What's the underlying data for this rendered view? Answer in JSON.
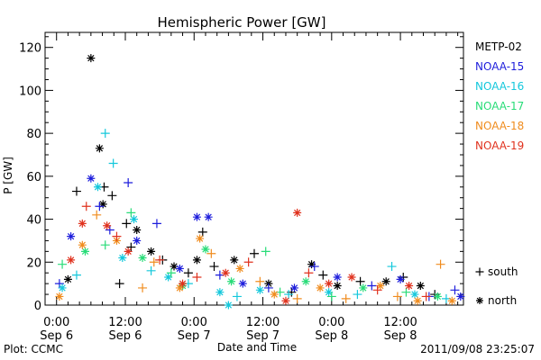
{
  "chart_data": {
    "type": "scatter",
    "title": "Hemispheric Power [GW]",
    "xlabel": "Date and Time",
    "ylabel": "P [GW]",
    "footer_left": "Plot: CCMC",
    "footer_right": "2011/09/08 23:25:07",
    "x_unit": "hours since Sep 6 00:00",
    "xlim": [
      -2,
      71
    ],
    "ylim": [
      0,
      127
    ],
    "grid": false,
    "legend_position": "right",
    "x_ticks": [
      {
        "value": 0,
        "time": "0:00",
        "date": "Sep 6"
      },
      {
        "value": 12,
        "time": "12:00",
        "date": "Sep 6"
      },
      {
        "value": 24,
        "time": "0:00",
        "date": "Sep 7"
      },
      {
        "value": 36,
        "time": "12:00",
        "date": "Sep 7"
      },
      {
        "value": 48,
        "time": "0:00",
        "date": "Sep 8"
      },
      {
        "value": 60,
        "time": "12:00",
        "date": "Sep 8"
      }
    ],
    "y_ticks": [
      0,
      20,
      40,
      60,
      80,
      100,
      120
    ],
    "marker_legend": [
      {
        "symbol": "+",
        "label": "south"
      },
      {
        "symbol": "*",
        "label": "north"
      }
    ],
    "series": [
      {
        "name": "METP-02",
        "color": "#000000",
        "points": [
          {
            "x": 6.0,
            "y": 115,
            "h": "N"
          },
          {
            "x": 7.5,
            "y": 73,
            "h": "N"
          },
          {
            "x": 8.3,
            "y": 55,
            "h": "S"
          },
          {
            "x": 3.5,
            "y": 53,
            "h": "S"
          },
          {
            "x": 9.7,
            "y": 51,
            "h": "S"
          },
          {
            "x": 8.1,
            "y": 47,
            "h": "N"
          },
          {
            "x": 12.2,
            "y": 38,
            "h": "S"
          },
          {
            "x": 14.0,
            "y": 35,
            "h": "N"
          },
          {
            "x": 13.0,
            "y": 27,
            "h": "S"
          },
          {
            "x": 11.0,
            "y": 10,
            "h": "S"
          },
          {
            "x": 16.5,
            "y": 25,
            "h": "N"
          },
          {
            "x": 18.5,
            "y": 21,
            "h": "S"
          },
          {
            "x": 20.5,
            "y": 18,
            "h": "N"
          },
          {
            "x": 23.0,
            "y": 15,
            "h": "S"
          },
          {
            "x": 25.5,
            "y": 34,
            "h": "S"
          },
          {
            "x": 24.5,
            "y": 21,
            "h": "N"
          },
          {
            "x": 27.5,
            "y": 18,
            "h": "S"
          },
          {
            "x": 31.0,
            "y": 21,
            "h": "N"
          },
          {
            "x": 34.5,
            "y": 24,
            "h": "S"
          },
          {
            "x": 37.0,
            "y": 10,
            "h": "N"
          },
          {
            "x": 44.5,
            "y": 19,
            "h": "N"
          },
          {
            "x": 46.5,
            "y": 14,
            "h": "S"
          },
          {
            "x": 49.0,
            "y": 9,
            "h": "N"
          },
          {
            "x": 53.0,
            "y": 11,
            "h": "S"
          },
          {
            "x": 57.5,
            "y": 11,
            "h": "N"
          },
          {
            "x": 60.5,
            "y": 13,
            "h": "S"
          },
          {
            "x": 63.5,
            "y": 9,
            "h": "N"
          },
          {
            "x": 66.0,
            "y": 5,
            "h": "S"
          },
          {
            "x": 2.0,
            "y": 12,
            "h": "N"
          },
          {
            "x": 41.0,
            "y": 6,
            "h": "S"
          }
        ]
      },
      {
        "name": "NOAA-15",
        "color": "#1e1edc",
        "points": [
          {
            "x": 2.5,
            "y": 32,
            "h": "N"
          },
          {
            "x": 6.0,
            "y": 59,
            "h": "N"
          },
          {
            "x": 7.5,
            "y": 46,
            "h": "S"
          },
          {
            "x": 12.5,
            "y": 57,
            "h": "S"
          },
          {
            "x": 9.3,
            "y": 35,
            "h": "S"
          },
          {
            "x": 14.0,
            "y": 30,
            "h": "N"
          },
          {
            "x": 17.5,
            "y": 38,
            "h": "S"
          },
          {
            "x": 24.5,
            "y": 41,
            "h": "N"
          },
          {
            "x": 26.5,
            "y": 41,
            "h": "N"
          },
          {
            "x": 28.5,
            "y": 14,
            "h": "S"
          },
          {
            "x": 32.5,
            "y": 10,
            "h": "N"
          },
          {
            "x": 37.0,
            "y": 8,
            "h": "S"
          },
          {
            "x": 41.5,
            "y": 8,
            "h": "N"
          },
          {
            "x": 45.0,
            "y": 18,
            "h": "S"
          },
          {
            "x": 49.0,
            "y": 13,
            "h": "N"
          },
          {
            "x": 55.0,
            "y": 9,
            "h": "S"
          },
          {
            "x": 60.0,
            "y": 12,
            "h": "N"
          },
          {
            "x": 65.0,
            "y": 4,
            "h": "S"
          },
          {
            "x": 69.5,
            "y": 7,
            "h": "S"
          },
          {
            "x": 70.5,
            "y": 4,
            "h": "N"
          },
          {
            "x": 0.5,
            "y": 10,
            "h": "S"
          },
          {
            "x": 21.5,
            "y": 17,
            "h": "N"
          }
        ]
      },
      {
        "name": "NOAA-16",
        "color": "#14c8dc",
        "points": [
          {
            "x": 8.5,
            "y": 80,
            "h": "S"
          },
          {
            "x": 9.9,
            "y": 66,
            "h": "S"
          },
          {
            "x": 7.2,
            "y": 55,
            "h": "N"
          },
          {
            "x": 13.5,
            "y": 40,
            "h": "N"
          },
          {
            "x": 3.5,
            "y": 14,
            "h": "S"
          },
          {
            "x": 11.5,
            "y": 22,
            "h": "N"
          },
          {
            "x": 16.5,
            "y": 16,
            "h": "S"
          },
          {
            "x": 19.5,
            "y": 13,
            "h": "N"
          },
          {
            "x": 23.0,
            "y": 10,
            "h": "S"
          },
          {
            "x": 28.5,
            "y": 6,
            "h": "N"
          },
          {
            "x": 31.5,
            "y": 4,
            "h": "S"
          },
          {
            "x": 35.5,
            "y": 7,
            "h": "N"
          },
          {
            "x": 40.5,
            "y": 5,
            "h": "S"
          },
          {
            "x": 47.5,
            "y": 6,
            "h": "N"
          },
          {
            "x": 52.5,
            "y": 5,
            "h": "S"
          },
          {
            "x": 58.5,
            "y": 18,
            "h": "S"
          },
          {
            "x": 62.5,
            "y": 5,
            "h": "N"
          },
          {
            "x": 68.0,
            "y": 3,
            "h": "S"
          },
          {
            "x": 30.0,
            "y": 0,
            "h": "N"
          },
          {
            "x": 1.0,
            "y": 8,
            "h": "N"
          }
        ]
      },
      {
        "name": "NOAA-17",
        "color": "#28dc78",
        "points": [
          {
            "x": 1.0,
            "y": 19,
            "h": "S"
          },
          {
            "x": 5.0,
            "y": 25,
            "h": "N"
          },
          {
            "x": 8.5,
            "y": 28,
            "h": "S"
          },
          {
            "x": 13.0,
            "y": 43,
            "h": "S"
          },
          {
            "x": 15.0,
            "y": 22,
            "h": "N"
          },
          {
            "x": 20.0,
            "y": 15,
            "h": "S"
          },
          {
            "x": 26.0,
            "y": 26,
            "h": "N"
          },
          {
            "x": 36.5,
            "y": 25,
            "h": "S"
          },
          {
            "x": 30.5,
            "y": 11,
            "h": "N"
          },
          {
            "x": 39.0,
            "y": 6,
            "h": "S"
          },
          {
            "x": 43.5,
            "y": 11,
            "h": "N"
          },
          {
            "x": 48.0,
            "y": 4,
            "h": "S"
          },
          {
            "x": 53.5,
            "y": 8,
            "h": "N"
          },
          {
            "x": 61.0,
            "y": 6,
            "h": "S"
          },
          {
            "x": 66.5,
            "y": 4,
            "h": "N"
          },
          {
            "x": 22.0,
            "y": 9,
            "h": "N"
          }
        ]
      },
      {
        "name": "NOAA-18",
        "color": "#f08c1e",
        "points": [
          {
            "x": 0.5,
            "y": 4,
            "h": "N"
          },
          {
            "x": 4.5,
            "y": 28,
            "h": "N"
          },
          {
            "x": 7.0,
            "y": 42,
            "h": "S"
          },
          {
            "x": 10.5,
            "y": 30,
            "h": "N"
          },
          {
            "x": 15.0,
            "y": 8,
            "h": "S"
          },
          {
            "x": 17.0,
            "y": 20,
            "h": "S"
          },
          {
            "x": 21.5,
            "y": 8,
            "h": "N"
          },
          {
            "x": 25.0,
            "y": 31,
            "h": "N"
          },
          {
            "x": 27.0,
            "y": 24,
            "h": "S"
          },
          {
            "x": 32.0,
            "y": 17,
            "h": "N"
          },
          {
            "x": 35.5,
            "y": 11,
            "h": "S"
          },
          {
            "x": 38.0,
            "y": 5,
            "h": "N"
          },
          {
            "x": 42.0,
            "y": 3,
            "h": "S"
          },
          {
            "x": 46.0,
            "y": 8,
            "h": "N"
          },
          {
            "x": 50.5,
            "y": 3,
            "h": "S"
          },
          {
            "x": 56.5,
            "y": 9,
            "h": "N"
          },
          {
            "x": 59.5,
            "y": 4,
            "h": "S"
          },
          {
            "x": 63.0,
            "y": 2,
            "h": "N"
          },
          {
            "x": 67.0,
            "y": 19,
            "h": "S"
          },
          {
            "x": 69.0,
            "y": 2,
            "h": "N"
          }
        ]
      },
      {
        "name": "NOAA-19",
        "color": "#e0321e",
        "points": [
          {
            "x": 2.5,
            "y": 21,
            "h": "N"
          },
          {
            "x": 4.5,
            "y": 38,
            "h": "N"
          },
          {
            "x": 5.2,
            "y": 46,
            "h": "S"
          },
          {
            "x": 8.8,
            "y": 37,
            "h": "N"
          },
          {
            "x": 10.5,
            "y": 32,
            "h": "S"
          },
          {
            "x": 12.5,
            "y": 25,
            "h": "N"
          },
          {
            "x": 18.0,
            "y": 21,
            "h": "S"
          },
          {
            "x": 22.0,
            "y": 10,
            "h": "N"
          },
          {
            "x": 24.5,
            "y": 13,
            "h": "S"
          },
          {
            "x": 29.5,
            "y": 15,
            "h": "N"
          },
          {
            "x": 33.5,
            "y": 20,
            "h": "S"
          },
          {
            "x": 42.0,
            "y": 43,
            "h": "N"
          },
          {
            "x": 44.0,
            "y": 15,
            "h": "S"
          },
          {
            "x": 47.5,
            "y": 10,
            "h": "N"
          },
          {
            "x": 51.5,
            "y": 13,
            "h": "N"
          },
          {
            "x": 56.0,
            "y": 7,
            "h": "S"
          },
          {
            "x": 61.5,
            "y": 9,
            "h": "N"
          },
          {
            "x": 64.5,
            "y": 4,
            "h": "S"
          },
          {
            "x": 40.0,
            "y": 2,
            "h": "N"
          }
        ]
      }
    ]
  }
}
